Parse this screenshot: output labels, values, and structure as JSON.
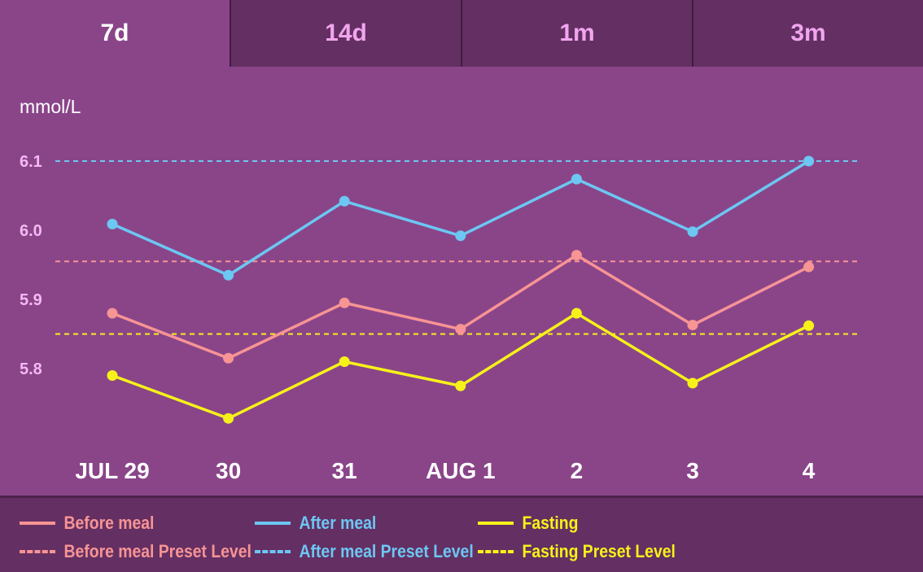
{
  "tabs": [
    "7d",
    "14d",
    "1m",
    "3m"
  ],
  "active_tab": "7d",
  "chart_data": {
    "type": "line",
    "ylabel": "mmol/L",
    "categories": [
      "JUL 29",
      "30",
      "31",
      "AUG 1",
      "2",
      "3",
      "4"
    ],
    "yticks": [
      "6.1",
      "6.0",
      "5.9",
      "5.8"
    ],
    "ylim": [
      5.72,
      6.15
    ],
    "grid": false,
    "legend_position": "bottom",
    "series": [
      {
        "name": "Before meal",
        "color": "#f79494",
        "values": [
          5.88,
          5.815,
          5.895,
          5.857,
          5.964,
          5.863,
          5.947
        ]
      },
      {
        "name": "After meal",
        "color": "#6cc7f2",
        "values": [
          6.009,
          5.935,
          6.042,
          5.992,
          6.074,
          5.998,
          6.1
        ]
      },
      {
        "name": "Fasting",
        "color": "#f6f219",
        "values": [
          5.79,
          5.728,
          5.81,
          5.775,
          5.88,
          5.779,
          5.862
        ]
      }
    ],
    "preset_levels": [
      {
        "name": "Before meal Preset Level",
        "color": "#f79494",
        "value": 5.955
      },
      {
        "name": "After meal Preset Level",
        "color": "#6cc7f2",
        "value": 6.1
      },
      {
        "name": "Fasting Preset Level",
        "color": "#f6f219",
        "value": 5.85
      }
    ]
  },
  "legend": {
    "before_meal": "Before meal",
    "after_meal": "After meal",
    "fasting": "Fasting",
    "before_meal_preset": "Before meal Preset Level",
    "after_meal_preset": "After meal Preset Level",
    "fasting_preset": "Fasting Preset Level"
  }
}
